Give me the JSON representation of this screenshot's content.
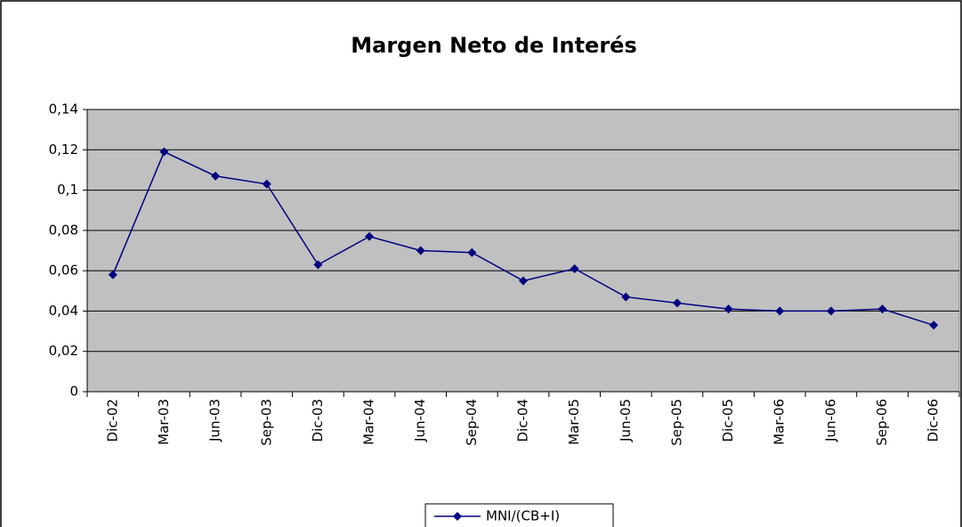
{
  "chart_data": {
    "type": "line",
    "title": "Margen Neto de Interés",
    "categories": [
      "Dic-02",
      "Mar-03",
      "Jun-03",
      "Sep-03",
      "Dic-03",
      "Mar-04",
      "Jun-04",
      "Sep-04",
      "Dic-04",
      "Mar-05",
      "Jun-05",
      "Sep-05",
      "Dic-05",
      "Mar-06",
      "Jun-06",
      "Sep-06",
      "Dic-06"
    ],
    "series": [
      {
        "name": "MNI/(CB+I)",
        "color": "#000080",
        "values": [
          0.058,
          0.119,
          0.107,
          0.103,
          0.063,
          0.077,
          0.07,
          0.069,
          0.055,
          0.061,
          0.047,
          0.044,
          0.041,
          0.04,
          0.04,
          0.041,
          0.033
        ]
      }
    ],
    "ylim": [
      0,
      0.14
    ],
    "yticks": [
      0,
      {
        "value": 0.02,
        "label": "0,02"
      },
      {
        "value": 0.04,
        "label": "0,04"
      },
      {
        "value": 0.06,
        "label": "0,06"
      },
      {
        "value": 0.08,
        "label": "0,08"
      },
      {
        "value": 0.1,
        "label": "0,1"
      },
      {
        "value": 0.12,
        "label": "0,12"
      },
      {
        "value": 0.14,
        "label": "0,14"
      }
    ],
    "grid": true,
    "plot_background": "#c0c0c0",
    "legend": "bottom"
  }
}
